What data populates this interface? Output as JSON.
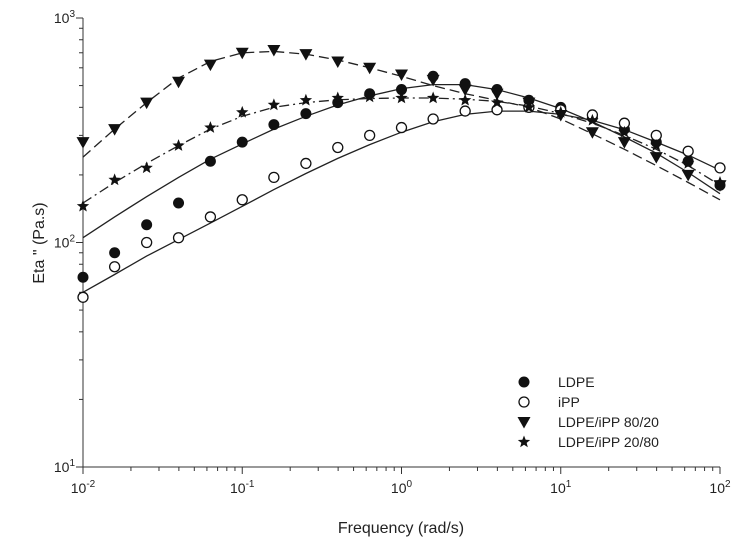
{
  "chart_data": {
    "type": "scatter",
    "xlabel": "Frequency (rad/s)",
    "ylabel": "Eta \" (Pa.s)",
    "xscale": "log",
    "yscale": "log",
    "xlim": [
      0.01,
      100
    ],
    "ylim": [
      10,
      1000
    ],
    "x_ticks": [
      {
        "value": 0.01,
        "base": "10",
        "exp": "-2"
      },
      {
        "value": 0.1,
        "base": "10",
        "exp": "-1"
      },
      {
        "value": 1,
        "base": "10",
        "exp": "0"
      },
      {
        "value": 10,
        "base": "10",
        "exp": "1"
      },
      {
        "value": 100,
        "base": "10",
        "exp": "2"
      }
    ],
    "y_ticks": [
      {
        "value": 10,
        "base": "10",
        "exp": "1"
      },
      {
        "value": 100,
        "base": "10",
        "exp": "2"
      },
      {
        "value": 1000,
        "base": "10",
        "exp": "3"
      }
    ],
    "grid": false,
    "legend_position": "bottom-right",
    "colors": {
      "marker": "#111111",
      "line": "#222222",
      "axis": "#333333"
    },
    "series": [
      {
        "name": "LDPE",
        "marker": "filled-circle",
        "line_style": "solid",
        "x": [
          0.01,
          0.0158,
          0.0251,
          0.0398,
          0.0631,
          0.1,
          0.158,
          0.251,
          0.398,
          0.631,
          1,
          1.58,
          2.51,
          3.98,
          6.31,
          10,
          15.8,
          25.1,
          39.8,
          63.1,
          100
        ],
        "y": [
          70,
          90,
          120,
          150,
          230,
          280,
          335,
          375,
          420,
          460,
          480,
          550,
          510,
          480,
          430,
          400,
          360,
          320,
          280,
          230,
          180
        ],
        "fit_x": [
          0.01,
          0.0158,
          0.0251,
          0.0398,
          0.0631,
          0.1,
          0.158,
          0.251,
          0.398,
          0.631,
          1,
          1.58,
          2.51,
          3.98,
          6.31,
          10,
          15.8,
          25.1,
          39.8,
          63.1,
          100
        ],
        "fit_y": [
          105,
          130,
          160,
          195,
          235,
          275,
          320,
          365,
          410,
          450,
          485,
          505,
          505,
          480,
          440,
          395,
          345,
          295,
          250,
          205,
          165
        ]
      },
      {
        "name": "iPP",
        "marker": "open-circle",
        "line_style": "solid",
        "x": [
          0.01,
          0.0158,
          0.0251,
          0.0398,
          0.0631,
          0.1,
          0.158,
          0.251,
          0.398,
          0.631,
          1,
          1.58,
          2.51,
          3.98,
          6.31,
          10,
          15.8,
          25.1,
          39.8,
          63.1,
          100
        ],
        "y": [
          57,
          78,
          100,
          105,
          130,
          155,
          195,
          225,
          265,
          300,
          325,
          355,
          385,
          390,
          400,
          390,
          370,
          340,
          300,
          255,
          215
        ],
        "fit_x": [
          0.01,
          0.0158,
          0.0251,
          0.0398,
          0.0631,
          0.1,
          0.158,
          0.251,
          0.398,
          0.631,
          1,
          1.58,
          2.51,
          3.98,
          6.31,
          10,
          15.8,
          25.1,
          39.8,
          63.1,
          100
        ],
        "fit_y": [
          60,
          72,
          87,
          103,
          122,
          145,
          172,
          203,
          237,
          273,
          310,
          345,
          372,
          385,
          385,
          372,
          350,
          318,
          280,
          245,
          210
        ]
      },
      {
        "name": "LDPE/iPP 80/20",
        "marker": "filled-triangle-down",
        "line_style": "dashed",
        "x": [
          0.01,
          0.0158,
          0.0251,
          0.0398,
          0.0631,
          0.1,
          0.158,
          0.251,
          0.398,
          0.631,
          1,
          1.58,
          2.51,
          3.98,
          6.31,
          10,
          15.8,
          25.1,
          39.8,
          63.1,
          100
        ],
        "y": [
          280,
          320,
          420,
          520,
          620,
          700,
          720,
          690,
          640,
          600,
          560,
          530,
          480,
          460,
          420,
          370,
          310,
          280,
          240,
          200,
          180
        ],
        "fit_x": [
          0.01,
          0.0158,
          0.0251,
          0.0398,
          0.0631,
          0.1,
          0.158,
          0.251,
          0.398,
          0.631,
          1,
          1.58,
          2.51,
          3.98,
          6.31,
          10,
          15.8,
          25.1,
          39.8,
          63.1,
          100
        ],
        "fit_y": [
          240,
          320,
          420,
          540,
          640,
          700,
          710,
          690,
          650,
          600,
          550,
          500,
          460,
          430,
          400,
          355,
          305,
          260,
          220,
          185,
          155
        ]
      },
      {
        "name": "LDPE/iPP 20/80",
        "marker": "filled-star",
        "line_style": "dash-dot",
        "x": [
          0.01,
          0.0158,
          0.0251,
          0.0398,
          0.0631,
          0.1,
          0.158,
          0.251,
          0.398,
          0.631,
          1,
          1.58,
          2.51,
          3.98,
          6.31,
          10,
          15.8,
          25.1,
          39.8,
          63.1,
          100
        ],
        "y": [
          145,
          190,
          215,
          270,
          325,
          380,
          410,
          430,
          440,
          445,
          440,
          440,
          430,
          420,
          400,
          380,
          350,
          310,
          270,
          225,
          185
        ],
        "fit_x": [
          0.01,
          0.0158,
          0.0251,
          0.0398,
          0.0631,
          0.1,
          0.158,
          0.251,
          0.398,
          0.631,
          1,
          1.58,
          2.51,
          3.98,
          6.31,
          10,
          15.8,
          25.1,
          39.8,
          63.1,
          100
        ],
        "fit_y": [
          150,
          185,
          225,
          270,
          320,
          365,
          400,
          420,
          432,
          438,
          440,
          440,
          435,
          425,
          405,
          375,
          340,
          300,
          260,
          220,
          180
        ]
      }
    ]
  }
}
